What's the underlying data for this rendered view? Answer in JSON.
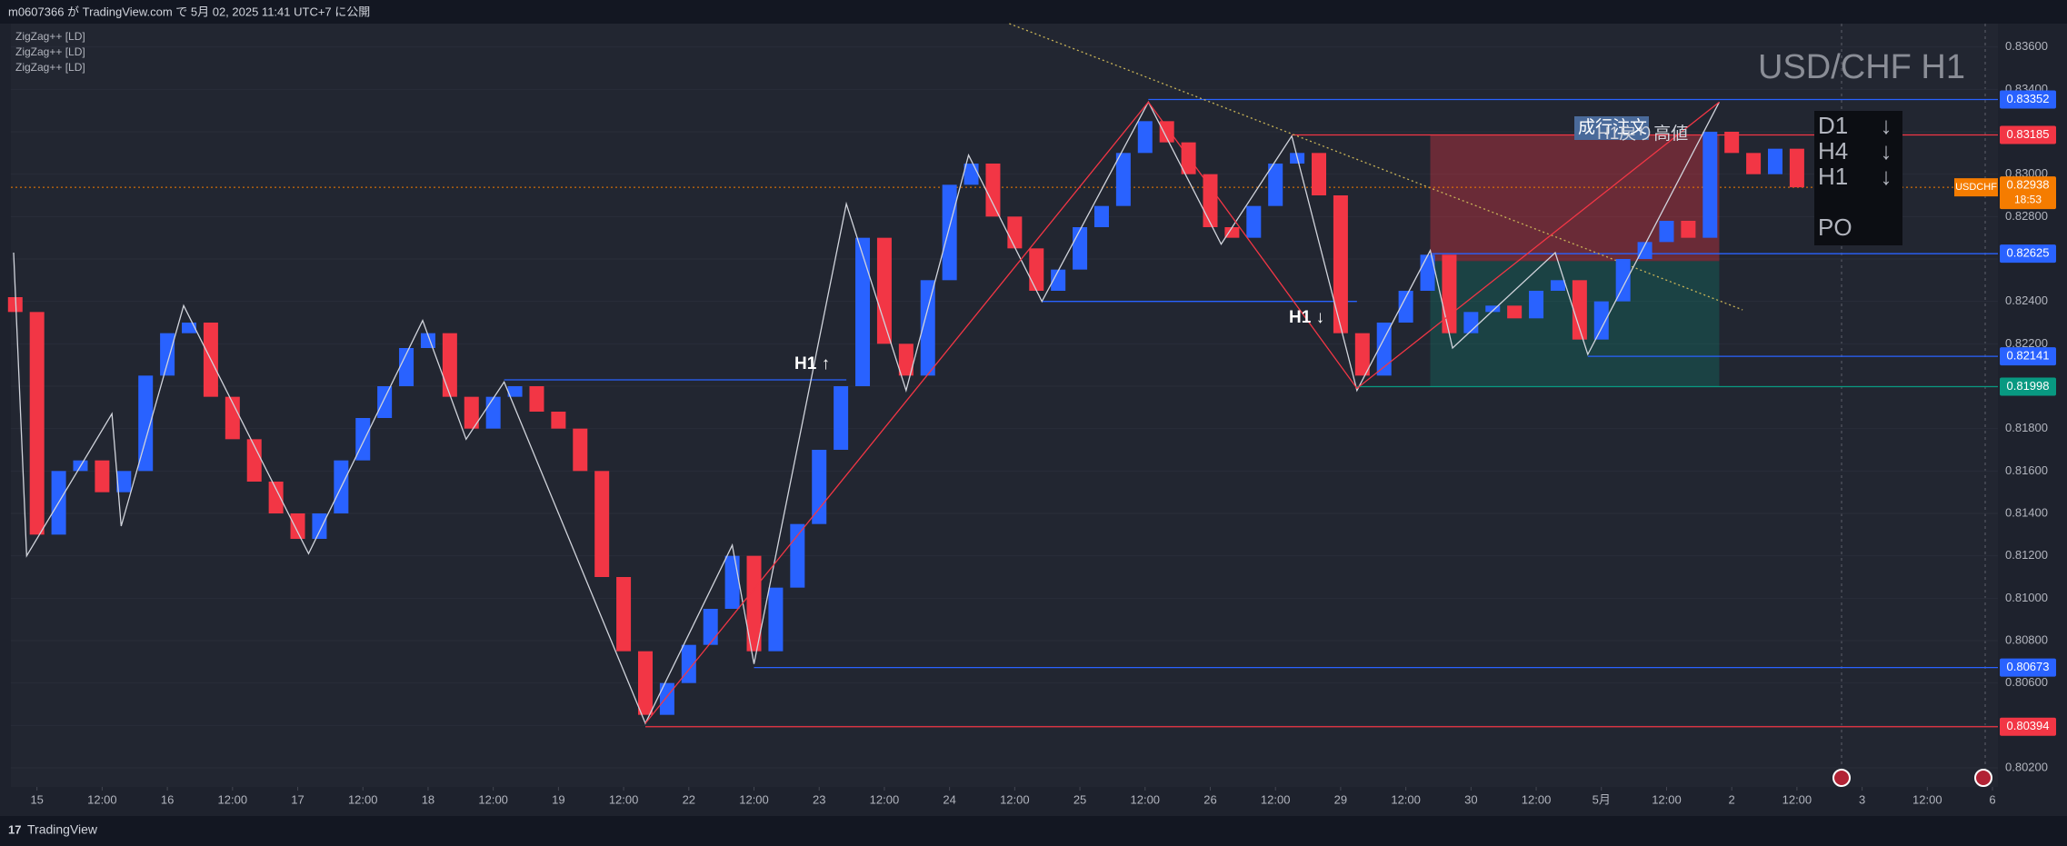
{
  "header": {
    "publisher": "m0607366 が TradingView.com で 5月 02, 2025 11:41 UTC+7 に公開"
  },
  "chart_data": {
    "type": "candlestick",
    "title": "USD/CHF H1",
    "indicator_labels": [
      "ZigZag++ [LD]",
      "ZigZag++ [LD]",
      "ZigZag++ [LD]"
    ],
    "x": [
      -4,
      0,
      4,
      8,
      12,
      16,
      20,
      24,
      28,
      32,
      36,
      40,
      44,
      48,
      52,
      56,
      60,
      64,
      68,
      72,
      76,
      80,
      84,
      88,
      92,
      96,
      100,
      104,
      108,
      112,
      116,
      120,
      124,
      128,
      132,
      136,
      140,
      144,
      148,
      152,
      156,
      160,
      164,
      168,
      172,
      176,
      180,
      184,
      188,
      192,
      196,
      200,
      204,
      208,
      212,
      216,
      220,
      224,
      228,
      232,
      236,
      240,
      244,
      248,
      252,
      256,
      260,
      264,
      268,
      272,
      276,
      280,
      284,
      288,
      292,
      296,
      300,
      304,
      308,
      312,
      316,
      320,
      324
    ],
    "open": [
      0.8242,
      0.8235,
      0.813,
      0.816,
      0.8165,
      0.815,
      0.816,
      0.8205,
      0.8225,
      0.823,
      0.8195,
      0.8175,
      0.8155,
      0.814,
      0.8128,
      0.814,
      0.8165,
      0.8185,
      0.82,
      0.8218,
      0.8225,
      0.8195,
      0.818,
      0.8195,
      0.82,
      0.8188,
      0.818,
      0.816,
      0.811,
      0.8075,
      0.8045,
      0.806,
      0.8078,
      0.8095,
      0.812,
      0.8075,
      0.8105,
      0.8135,
      0.817,
      0.82,
      0.827,
      0.822,
      0.8205,
      0.825,
      0.8295,
      0.8305,
      0.828,
      0.8265,
      0.8245,
      0.8255,
      0.8275,
      0.8285,
      0.831,
      0.8325,
      0.8315,
      0.83,
      0.8275,
      0.827,
      0.8285,
      0.8305,
      0.831,
      0.829,
      0.8225,
      0.8205,
      0.823,
      0.8245,
      0.8262,
      0.8225,
      0.8235,
      0.8238,
      0.8232,
      0.8245,
      0.825,
      0.8222,
      0.824,
      0.826,
      0.8268,
      0.8278,
      0.827,
      0.832,
      0.831,
      0.83,
      0.8312
    ],
    "close": [
      0.8235,
      0.813,
      0.816,
      0.8165,
      0.815,
      0.816,
      0.8205,
      0.8225,
      0.823,
      0.8195,
      0.8175,
      0.8155,
      0.814,
      0.8128,
      0.814,
      0.8165,
      0.8185,
      0.82,
      0.8218,
      0.8225,
      0.8195,
      0.818,
      0.8195,
      0.82,
      0.8188,
      0.818,
      0.816,
      0.811,
      0.8075,
      0.8045,
      0.806,
      0.8078,
      0.8095,
      0.812,
      0.8075,
      0.8105,
      0.8135,
      0.817,
      0.82,
      0.827,
      0.822,
      0.8205,
      0.825,
      0.8295,
      0.8305,
      0.828,
      0.8265,
      0.8245,
      0.8255,
      0.8275,
      0.8285,
      0.831,
      0.8325,
      0.8315,
      0.83,
      0.8275,
      0.827,
      0.8285,
      0.8305,
      0.831,
      0.829,
      0.8225,
      0.8205,
      0.823,
      0.8245,
      0.8262,
      0.8225,
      0.8235,
      0.8238,
      0.8232,
      0.8245,
      0.825,
      0.8222,
      0.824,
      0.826,
      0.8268,
      0.8278,
      0.827,
      0.832,
      0.831,
      0.83,
      0.8312,
      0.82938
    ],
    "up_color": "#2962ff",
    "down_color": "#f23645",
    "xlim": [
      -4.8,
      361
    ],
    "xticks": [
      {
        "value": 0,
        "label": "15"
      },
      {
        "value": 12,
        "label": "12:00"
      },
      {
        "value": 24,
        "label": "16"
      },
      {
        "value": 36,
        "label": "12:00"
      },
      {
        "value": 48,
        "label": "17"
      },
      {
        "value": 60,
        "label": "12:00"
      },
      {
        "value": 72,
        "label": "18"
      },
      {
        "value": 84,
        "label": "12:00"
      },
      {
        "value": 96,
        "label": "19"
      },
      {
        "value": 108,
        "label": "12:00"
      },
      {
        "value": 120,
        "label": "22"
      },
      {
        "value": 132,
        "label": "12:00"
      },
      {
        "value": 144,
        "label": "23"
      },
      {
        "value": 156,
        "label": "12:00"
      },
      {
        "value": 168,
        "label": "24"
      },
      {
        "value": 180,
        "label": "12:00"
      },
      {
        "value": 192,
        "label": "25"
      },
      {
        "value": 204,
        "label": "12:00"
      },
      {
        "value": 216,
        "label": "26"
      },
      {
        "value": 228,
        "label": "12:00"
      },
      {
        "value": 240,
        "label": "29"
      },
      {
        "value": 252,
        "label": "12:00"
      },
      {
        "value": 264,
        "label": "30"
      },
      {
        "value": 276,
        "label": "12:00"
      },
      {
        "value": 288,
        "label": "5月"
      },
      {
        "value": 300,
        "label": "12:00"
      },
      {
        "value": 312,
        "label": "2"
      },
      {
        "value": 324,
        "label": "12:00"
      },
      {
        "value": 336,
        "label": "3"
      },
      {
        "value": 348,
        "label": "12:00"
      },
      {
        "value": 360,
        "label": "6"
      }
    ],
    "ylim": [
      0.8011,
      0.8371
    ],
    "yticks": [
      {
        "value": 0.802,
        "label": "0.80200"
      },
      {
        "value": 0.804,
        "label": "0.80400"
      },
      {
        "value": 0.806,
        "label": "0.80600"
      },
      {
        "value": 0.808,
        "label": "0.80800"
      },
      {
        "value": 0.81,
        "label": "0.81000"
      },
      {
        "value": 0.812,
        "label": "0.81200"
      },
      {
        "value": 0.814,
        "label": "0.81400"
      },
      {
        "value": 0.816,
        "label": "0.81600"
      },
      {
        "value": 0.818,
        "label": "0.81800"
      },
      {
        "value": 0.82,
        "label": "0.82000"
      },
      {
        "value": 0.822,
        "label": "0.82200"
      },
      {
        "value": 0.824,
        "label": "0.82400"
      },
      {
        "value": 0.826,
        "label": "0.82600"
      },
      {
        "value": 0.828,
        "label": "0.82800"
      },
      {
        "value": 0.83,
        "label": "0.83000"
      },
      {
        "value": 0.832,
        "label": "0.83200"
      },
      {
        "value": 0.834,
        "label": "0.83400"
      },
      {
        "value": 0.836,
        "label": "0.83600"
      }
    ],
    "levels": [
      {
        "value": 0.83352,
        "start": 204.6,
        "color": "#2962ff"
      },
      {
        "value": 0.83185,
        "start": 231,
        "color": "#f23645"
      },
      {
        "value": 0.82625,
        "start": 256.5,
        "color": "#2962ff"
      },
      {
        "value": 0.82141,
        "start": 285.5,
        "color": "#2962ff"
      },
      {
        "value": 0.81998,
        "start": 243,
        "color": "#089981"
      },
      {
        "value": 0.80673,
        "start": 132,
        "color": "#2962ff"
      },
      {
        "value": 0.80394,
        "start": 112,
        "color": "#f23645"
      }
    ],
    "segments": [
      {
        "value": 0.8203,
        "start": 86,
        "end": 149
      },
      {
        "value": 0.824,
        "start": 185,
        "end": 243
      }
    ],
    "last_price": {
      "symbol": "USDCHF",
      "value": 0.82938,
      "countdown": "18:53",
      "color": "#f57c00"
    },
    "zigzags": [
      {
        "color": "#d1d4dc",
        "x": [
          -4.3,
          -1.9,
          13.8,
          15.5,
          27,
          50,
          71,
          79,
          86,
          112,
          128,
          132,
          149,
          160,
          171.5,
          185,
          204.6,
          218,
          231,
          243,
          256.5,
          260.6,
          279.5,
          285.5,
          309.7
        ],
        "y": [
          0.8263,
          0.812,
          0.8187,
          0.8134,
          0.8238,
          0.8121,
          0.8231,
          0.8175,
          0.8202,
          0.8041,
          0.8125,
          0.8069,
          0.8286,
          0.8198,
          0.8309,
          0.824,
          0.8334,
          0.8267,
          0.8318,
          0.8198,
          0.8264,
          0.8218,
          0.8263,
          0.8215,
          0.8334
        ]
      },
      {
        "color": "#f23645",
        "x": [
          112,
          204.6,
          243,
          309.7
        ],
        "y": [
          0.8041,
          0.8334,
          0.8199,
          0.8334
        ]
      }
    ],
    "trendline": {
      "x": [
        179,
        314
      ],
      "y": [
        0.8371,
        0.8236
      ],
      "color": "#c9b458"
    },
    "position": {
      "start": 256.5,
      "end": 309.7,
      "entry": 0.8259,
      "stop": 0.83185,
      "target": 0.81998
    },
    "annotations": [
      "H1 ↑",
      "H1 ↓",
      "成行注文",
      "H1戻り高値"
    ],
    "trend_panel": {
      "rows": [
        {
          "tf": "D1",
          "dir": "↓"
        },
        {
          "tf": "H4",
          "dir": "↓"
        },
        {
          "tf": "H1",
          "dir": "↓"
        }
      ],
      "order": "PO"
    }
  },
  "footer": {
    "brand": "TradingView"
  }
}
